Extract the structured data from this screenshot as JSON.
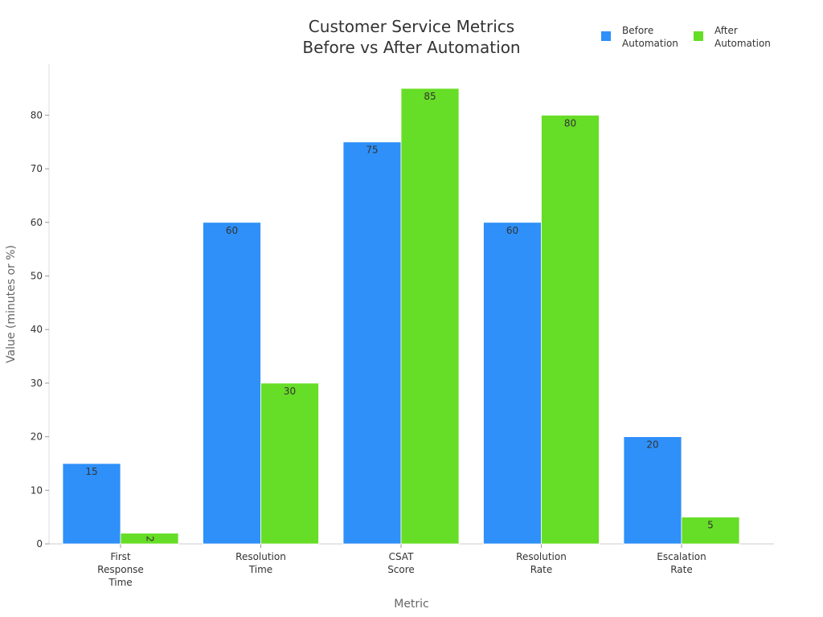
{
  "chart_data": {
    "type": "bar",
    "title_lines": [
      "Customer Service Metrics",
      "Before vs After Automation"
    ],
    "xlabel": "Metric",
    "ylabel": "Value (minutes or %)",
    "categories": [
      [
        "First",
        "Response",
        "Time"
      ],
      [
        "Resolution",
        "Time"
      ],
      [
        "CSAT",
        "Score"
      ],
      [
        "Resolution",
        "Rate"
      ],
      [
        "Escalation",
        "Rate"
      ]
    ],
    "series": [
      {
        "name_lines": [
          "Before",
          "Automation"
        ],
        "color": "#2E90F8",
        "values": [
          15,
          60,
          75,
          60,
          20
        ]
      },
      {
        "name_lines": [
          "After",
          "Automation"
        ],
        "color": "#66DD26",
        "values": [
          2,
          30,
          85,
          80,
          5
        ]
      }
    ],
    "ylim": [
      0,
      89.5
    ],
    "yticks": [
      0,
      10,
      20,
      30,
      40,
      50,
      60,
      70,
      80
    ],
    "grid": false,
    "legend_position": "top-right"
  }
}
